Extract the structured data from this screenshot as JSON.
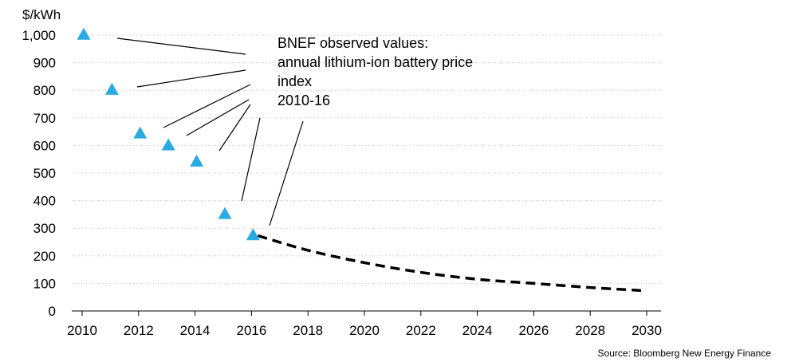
{
  "chart_data": {
    "type": "scatter",
    "ylabel": "$/kWh",
    "ylim": [
      0,
      1000
    ],
    "yticks": [
      0,
      100,
      200,
      300,
      400,
      500,
      600,
      700,
      800,
      900,
      1000
    ],
    "ytick_labels": [
      "0",
      "100",
      "200",
      "300",
      "400",
      "500",
      "600",
      "700",
      "800",
      "900",
      "1,000"
    ],
    "xlim": [
      2010,
      2030
    ],
    "xticks": [
      2010,
      2012,
      2014,
      2016,
      2018,
      2020,
      2022,
      2024,
      2026,
      2028,
      2030
    ],
    "xtick_labels": [
      "2010",
      "2012",
      "2014",
      "2016",
      "2018",
      "2020",
      "2022",
      "2024",
      "2026",
      "2028",
      "2030"
    ],
    "grid": "horizontal",
    "annotation_lines": [
      "BNEF observed values:",
      "annual lithium-ion battery price",
      "index",
      "2010-16"
    ],
    "series": [
      {
        "name": "BNEF observed values",
        "marker": "triangle",
        "color": "#29abe2",
        "x": [
          2010,
          2011,
          2012,
          2013,
          2014,
          2015,
          2016
        ],
        "y": [
          1000,
          800,
          642,
          599,
          540,
          350,
          273
        ]
      },
      {
        "marker": "none",
        "line": "dashed",
        "color": "#000000",
        "x": [
          2016,
          2018,
          2020,
          2022,
          2024,
          2026,
          2028,
          2030
        ],
        "y": [
          273,
          220,
          175,
          140,
          115,
          100,
          85,
          73
        ]
      }
    ]
  },
  "source_note": "Source: Bloomberg New Energy Finance"
}
